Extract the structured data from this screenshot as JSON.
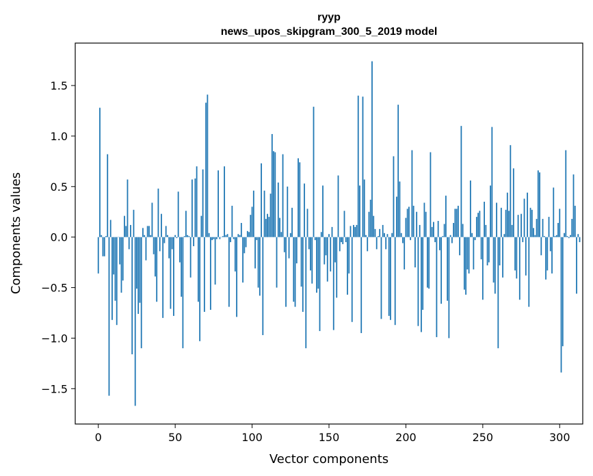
{
  "chart_data": {
    "type": "bar",
    "title": "ryyp",
    "subtitle": "news_upos_skipgram_300_5_2019 model",
    "xlabel": "Vector components",
    "ylabel": "Components values",
    "xlim": [
      -15,
      315
    ],
    "ylim": [
      -1.85,
      1.92
    ],
    "x_ticks": [
      0,
      50,
      100,
      150,
      200,
      250,
      300
    ],
    "x_tick_labels": [
      "0",
      "50",
      "100",
      "150",
      "200",
      "250",
      "300"
    ],
    "y_ticks": [
      -1.5,
      -1.0,
      -0.5,
      0.0,
      0.5,
      1.0,
      1.5
    ],
    "y_tick_labels": [
      "−1.5",
      "−1.0",
      "−0.5",
      "0.0",
      "0.5",
      "1.0",
      "1.5"
    ],
    "bar_color": "#1f77b4",
    "values": [
      -0.36,
      1.28,
      0.02,
      -0.19,
      -0.19,
      0.01,
      0.82,
      -1.57,
      0.17,
      -0.82,
      -0.37,
      -0.63,
      -0.87,
      0.0,
      -0.27,
      -0.55,
      -0.43,
      0.21,
      0.11,
      0.57,
      -0.12,
      0.12,
      -1.16,
      0.27,
      -1.67,
      -0.51,
      -0.76,
      -0.65,
      -1.1,
      0.09,
      0.02,
      -0.23,
      0.11,
      0.11,
      0.02,
      0.34,
      -0.17,
      -0.39,
      -0.64,
      0.48,
      -0.14,
      0.23,
      -0.8,
      -0.06,
      0.11,
      0.02,
      -0.21,
      -0.71,
      -0.12,
      -0.78,
      0.02,
      -0.01,
      0.45,
      -0.25,
      -0.59,
      -1.1,
      0.01,
      0.26,
      0.02,
      0.01,
      -0.4,
      0.57,
      -0.09,
      0.58,
      0.7,
      -0.64,
      -1.03,
      0.21,
      0.67,
      -0.74,
      1.33,
      1.41,
      0.04,
      -0.72,
      -0.03,
      -0.02,
      -0.47,
      -0.02,
      0.66,
      -0.02,
      0.0,
      0.01,
      0.7,
      0.02,
      0.03,
      -0.69,
      -0.05,
      0.31,
      -0.02,
      -0.34,
      -0.79,
      0.03,
      0.02,
      0.14,
      -0.45,
      -0.16,
      -0.1,
      0.06,
      0.05,
      0.22,
      0.3,
      0.46,
      -0.31,
      -0.03,
      -0.5,
      -0.58,
      0.73,
      -0.97,
      0.46,
      0.18,
      0.23,
      0.2,
      0.43,
      1.02,
      0.85,
      0.84,
      -0.5,
      0.54,
      0.19,
      0.05,
      0.82,
      -0.15,
      -0.69,
      0.5,
      -0.21,
      0.04,
      0.29,
      -0.64,
      -0.69,
      -0.26,
      0.78,
      0.74,
      -0.49,
      -0.74,
      0.53,
      -1.1,
      0.28,
      -0.12,
      -0.33,
      -0.46,
      1.29,
      -0.03,
      -0.55,
      -0.51,
      -0.93,
      0.05,
      0.51,
      -0.27,
      -0.18,
      -0.44,
      0.03,
      -0.34,
      0.1,
      -0.92,
      -0.25,
      -0.6,
      0.61,
      -0.14,
      -0.05,
      -0.07,
      0.26,
      -0.05,
      -0.57,
      -0.36,
      0.11,
      -0.84,
      0.12,
      0.1,
      0.12,
      1.4,
      0.51,
      -0.95,
      1.39,
      0.57,
      0.02,
      -0.14,
      0.25,
      0.37,
      1.74,
      0.21,
      0.08,
      -0.12,
      0.01,
      0.08,
      -0.81,
      0.12,
      0.04,
      -0.12,
      0.03,
      -0.78,
      -0.82,
      0.04,
      0.8,
      -0.87,
      0.4,
      1.31,
      0.55,
      0.04,
      -0.06,
      -0.32,
      0.19,
      0.28,
      0.3,
      -0.03,
      0.86,
      0.31,
      -0.3,
      0.25,
      -0.88,
      0.12,
      -0.94,
      -0.72,
      0.34,
      0.25,
      -0.5,
      -0.51,
      0.84,
      0.1,
      0.15,
      -0.05,
      -0.99,
      0.16,
      -0.13,
      -0.66,
      0.01,
      0.13,
      0.41,
      -0.63,
      -1.0,
      0.02,
      -0.06,
      0.14,
      0.28,
      0.28,
      0.31,
      -0.18,
      1.1,
      0.13,
      -0.52,
      -0.57,
      -0.32,
      -0.36,
      0.56,
      0.04,
      -0.32,
      -0.03,
      0.2,
      0.24,
      0.26,
      -0.22,
      -0.62,
      0.35,
      0.12,
      -0.28,
      -0.25,
      0.51,
      1.09,
      -0.45,
      -0.56,
      0.34,
      -1.1,
      -0.28,
      0.29,
      -0.4,
      0.03,
      0.27,
      0.44,
      0.26,
      0.91,
      0.12,
      0.68,
      -0.33,
      -0.41,
      0.22,
      -0.62,
      0.23,
      -0.05,
      0.38,
      -0.38,
      0.44,
      -0.69,
      0.29,
      0.27,
      0.09,
      0.02,
      0.18,
      0.66,
      0.64,
      -0.18,
      0.18,
      0.01,
      -0.42,
      -0.33,
      0.2,
      -0.14,
      -0.36,
      0.49,
      0.01,
      0.02,
      0.14,
      0.28,
      -1.34,
      -1.08,
      0.04,
      0.86,
      0.01,
      -0.01,
      0.02,
      0.18,
      0.62,
      0.31,
      -0.56,
      0.03,
      -0.05
    ]
  }
}
